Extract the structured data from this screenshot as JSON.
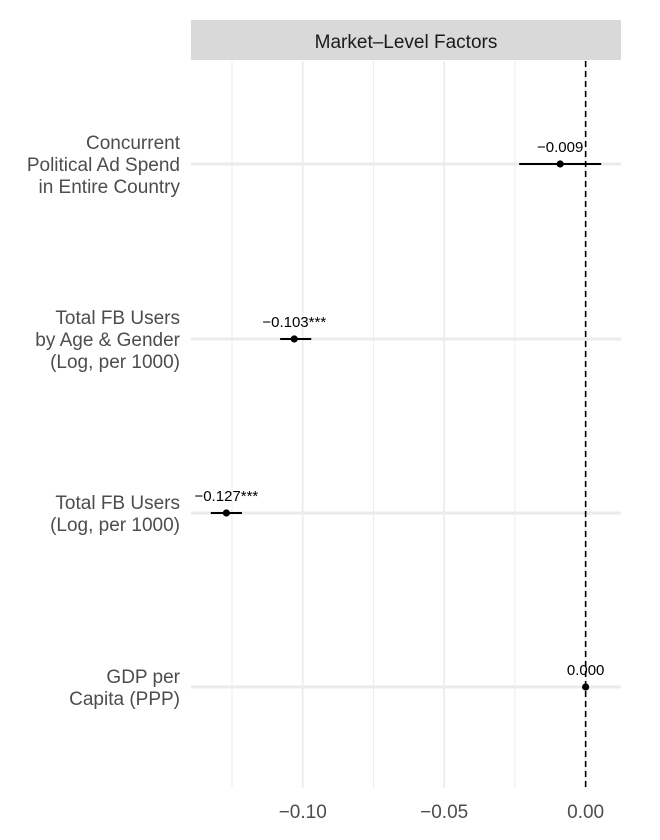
{
  "chart_data": {
    "type": "scatter",
    "subtype": "coefficient-plot",
    "facet_title": "Market–Level Factors",
    "xlabel": "",
    "ylabel": "",
    "xlim": [
      -0.1395,
      0.0125
    ],
    "x_ticks": [
      -0.1,
      -0.05,
      0.0
    ],
    "x_tick_labels": [
      "−0.10",
      "−0.05",
      "0.00"
    ],
    "reference_line": {
      "x": 0,
      "style": "dashed"
    },
    "grid": true,
    "points": [
      {
        "label_lines": [
          "Concurrent",
          "Political Ad Spend",
          "in Entire Country"
        ],
        "estimate": -0.009,
        "ci": [
          -0.0235,
          0.0055
        ],
        "annotation": "−0.009"
      },
      {
        "label_lines": [
          "Total FB Users",
          "by Age & Gender",
          "(Log, per 1000)"
        ],
        "estimate": -0.103,
        "ci": [
          -0.108,
          -0.097
        ],
        "annotation": "−0.103***"
      },
      {
        "label_lines": [
          "Total FB Users",
          "(Log, per 1000)"
        ],
        "estimate": -0.127,
        "ci": [
          -0.1325,
          -0.1215
        ],
        "annotation": "−0.127***"
      },
      {
        "label_lines": [
          "GDP per",
          "Capita (PPP)"
        ],
        "estimate": 0.0,
        "ci": [
          0.0,
          0.0
        ],
        "annotation": "0.000"
      }
    ],
    "colors": {
      "strip_background": "#d9d9d9",
      "grid": "#ebebeb",
      "point": "#000000",
      "reference_line": "#000000"
    }
  }
}
